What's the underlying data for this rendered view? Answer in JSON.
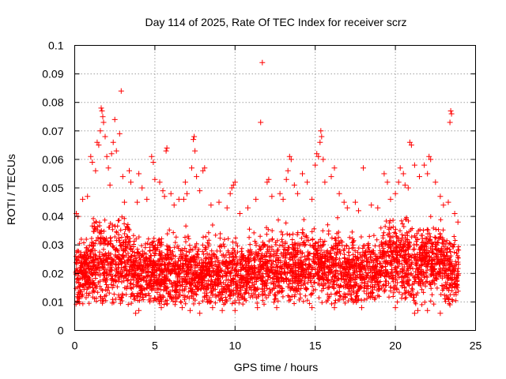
{
  "chart_data": {
    "type": "scatter",
    "title": "Day 114 of 2025, Rate Of TEC Index for receiver scrz",
    "xlabel": "GPS time / hours",
    "ylabel": "ROTI / TECUs",
    "xlim": [
      0,
      25
    ],
    "ylim": [
      0,
      0.1
    ],
    "x_ticks": [
      "0",
      "5",
      "10",
      "15",
      "20",
      "25"
    ],
    "x_tick_values": [
      0,
      5,
      10,
      15,
      20,
      25
    ],
    "y_ticks": [
      "0",
      "0.01",
      "0.02",
      "0.03",
      "0.04",
      "0.05",
      "0.06",
      "0.07",
      "0.08",
      "0.09",
      "0.1"
    ],
    "y_tick_values": [
      0,
      0.01,
      0.02,
      0.03,
      0.04,
      0.05,
      0.06,
      0.07,
      0.08,
      0.09,
      0.1
    ],
    "grid": true,
    "marker": "+",
    "marker_color": "#ff0000",
    "series": [
      {
        "name": "ROTI",
        "points": [
          [
            0.1,
            0.041
          ],
          [
            0.2,
            0.04
          ],
          [
            0.5,
            0.046
          ],
          [
            0.8,
            0.047
          ],
          [
            1.0,
            0.061
          ],
          [
            1.1,
            0.059
          ],
          [
            1.3,
            0.056
          ],
          [
            1.4,
            0.066
          ],
          [
            1.5,
            0.065
          ],
          [
            1.6,
            0.07
          ],
          [
            1.65,
            0.078
          ],
          [
            1.7,
            0.077
          ],
          [
            1.75,
            0.075
          ],
          [
            1.8,
            0.073
          ],
          [
            1.9,
            0.068
          ],
          [
            2.0,
            0.061
          ],
          [
            2.1,
            0.057
          ],
          [
            2.2,
            0.051
          ],
          [
            2.3,
            0.062
          ],
          [
            2.4,
            0.066
          ],
          [
            2.5,
            0.074
          ],
          [
            2.6,
            0.063
          ],
          [
            2.8,
            0.069
          ],
          [
            2.9,
            0.084
          ],
          [
            3.0,
            0.054
          ],
          [
            3.1,
            0.045
          ],
          [
            3.4,
            0.056
          ],
          [
            3.5,
            0.052
          ],
          [
            3.9,
            0.045
          ],
          [
            4.0,
            0.055
          ],
          [
            4.2,
            0.05
          ],
          [
            4.5,
            0.046
          ],
          [
            4.8,
            0.061
          ],
          [
            4.9,
            0.059
          ],
          [
            5.0,
            0.053
          ],
          [
            5.3,
            0.052
          ],
          [
            5.5,
            0.049
          ],
          [
            5.6,
            0.047
          ],
          [
            5.7,
            0.063
          ],
          [
            5.75,
            0.064
          ],
          [
            6.0,
            0.048
          ],
          [
            6.2,
            0.044
          ],
          [
            6.5,
            0.046
          ],
          [
            6.8,
            0.046
          ],
          [
            6.9,
            0.052
          ],
          [
            7.0,
            0.048
          ],
          [
            7.3,
            0.057
          ],
          [
            7.4,
            0.067
          ],
          [
            7.45,
            0.068
          ],
          [
            7.5,
            0.063
          ],
          [
            7.6,
            0.054
          ],
          [
            7.8,
            0.049
          ],
          [
            8.0,
            0.056
          ],
          [
            8.1,
            0.057
          ],
          [
            8.5,
            0.044
          ],
          [
            9.0,
            0.045
          ],
          [
            9.5,
            0.043
          ],
          [
            9.7,
            0.048
          ],
          [
            9.8,
            0.05
          ],
          [
            9.9,
            0.051
          ],
          [
            10.0,
            0.052
          ],
          [
            10.3,
            0.041
          ],
          [
            10.8,
            0.043
          ],
          [
            11.3,
            0.046
          ],
          [
            11.6,
            0.073
          ],
          [
            11.7,
            0.094
          ],
          [
            12.0,
            0.052
          ],
          [
            12.1,
            0.053
          ],
          [
            12.3,
            0.047
          ],
          [
            12.8,
            0.048
          ],
          [
            13.0,
            0.046
          ],
          [
            13.2,
            0.053
          ],
          [
            13.3,
            0.056
          ],
          [
            13.4,
            0.061
          ],
          [
            13.5,
            0.06
          ],
          [
            13.7,
            0.051
          ],
          [
            13.9,
            0.048
          ],
          [
            14.2,
            0.055
          ],
          [
            14.5,
            0.052
          ],
          [
            14.8,
            0.046
          ],
          [
            15.0,
            0.058
          ],
          [
            15.1,
            0.062
          ],
          [
            15.2,
            0.061
          ],
          [
            15.3,
            0.066
          ],
          [
            15.35,
            0.07
          ],
          [
            15.4,
            0.068
          ],
          [
            15.5,
            0.06
          ],
          [
            15.6,
            0.052
          ],
          [
            16.0,
            0.054
          ],
          [
            16.2,
            0.057
          ],
          [
            16.5,
            0.048
          ],
          [
            16.8,
            0.045
          ],
          [
            17.0,
            0.043
          ],
          [
            17.5,
            0.045
          ],
          [
            17.7,
            0.042
          ],
          [
            18.0,
            0.057
          ],
          [
            18.5,
            0.044
          ],
          [
            18.9,
            0.043
          ],
          [
            19.3,
            0.055
          ],
          [
            19.5,
            0.052
          ],
          [
            19.7,
            0.046
          ],
          [
            20.0,
            0.048
          ],
          [
            20.2,
            0.052
          ],
          [
            20.3,
            0.057
          ],
          [
            20.5,
            0.055
          ],
          [
            20.6,
            0.051
          ],
          [
            20.8,
            0.05
          ],
          [
            20.9,
            0.066
          ],
          [
            21.0,
            0.065
          ],
          [
            21.2,
            0.058
          ],
          [
            21.5,
            0.054
          ],
          [
            21.8,
            0.058
          ],
          [
            22.0,
            0.055
          ],
          [
            22.1,
            0.061
          ],
          [
            22.2,
            0.06
          ],
          [
            22.5,
            0.052
          ],
          [
            22.8,
            0.047
          ],
          [
            23.0,
            0.044
          ],
          [
            23.3,
            0.045
          ],
          [
            23.4,
            0.073
          ],
          [
            23.45,
            0.077
          ],
          [
            23.5,
            0.076
          ],
          [
            23.7,
            0.041
          ],
          [
            23.9,
            0.038
          ],
          [
            3.8,
            0.006
          ],
          [
            4.0,
            0.007
          ],
          [
            5.4,
            0.008
          ],
          [
            6.7,
            0.008
          ],
          [
            7.2,
            0.007
          ],
          [
            7.8,
            0.006
          ],
          [
            8.6,
            0.008
          ],
          [
            9.2,
            0.007
          ],
          [
            10.0,
            0.007
          ],
          [
            11.4,
            0.008
          ],
          [
            12.6,
            0.008
          ],
          [
            14.8,
            0.008
          ],
          [
            16.2,
            0.008
          ],
          [
            17.9,
            0.008
          ],
          [
            20.0,
            0.008
          ],
          [
            21.2,
            0.006
          ],
          [
            21.4,
            0.007
          ],
          [
            22.0,
            0.007
          ],
          [
            22.8,
            0.006
          ],
          [
            23.4,
            0.009
          ]
        ]
      }
    ]
  }
}
